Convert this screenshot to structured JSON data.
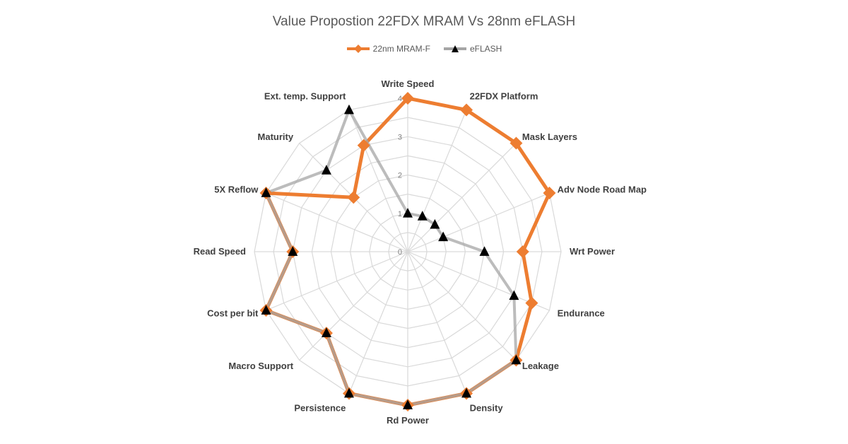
{
  "chart_data": {
    "type": "radar",
    "title": "Value Propostion 22FDX MRAM Vs 28nm eFLASH",
    "categories": [
      "Write Speed",
      "22FDX Platform",
      "Mask Layers",
      "Adv Node Road Map",
      "Wrt Power",
      "Endurance",
      "Leakage",
      "Density",
      "Rd Power",
      "Persistence",
      "Macro Support",
      "Cost per bit",
      "Read Speed",
      "5X Reflow",
      "Maturity",
      "Ext. temp.  Support"
    ],
    "r_ticks": [
      "0",
      "1",
      "2",
      "3",
      "4"
    ],
    "r_range": [
      0,
      4
    ],
    "grid": true,
    "legend_position": "top",
    "series": [
      {
        "name": "22nm MRAM-F",
        "color": "#ED7D31",
        "marker": "diamond",
        "values": [
          4,
          4,
          4,
          4,
          3,
          3.5,
          4,
          4,
          4,
          4,
          3,
          4,
          3,
          4,
          2,
          3
        ]
      },
      {
        "name": "eFLASH",
        "color": "#A5A5A5",
        "marker": "triangle",
        "values": [
          1,
          1,
          1,
          1,
          2,
          3,
          4,
          4,
          4,
          4,
          3,
          4,
          3,
          4,
          3,
          4
        ]
      }
    ]
  }
}
